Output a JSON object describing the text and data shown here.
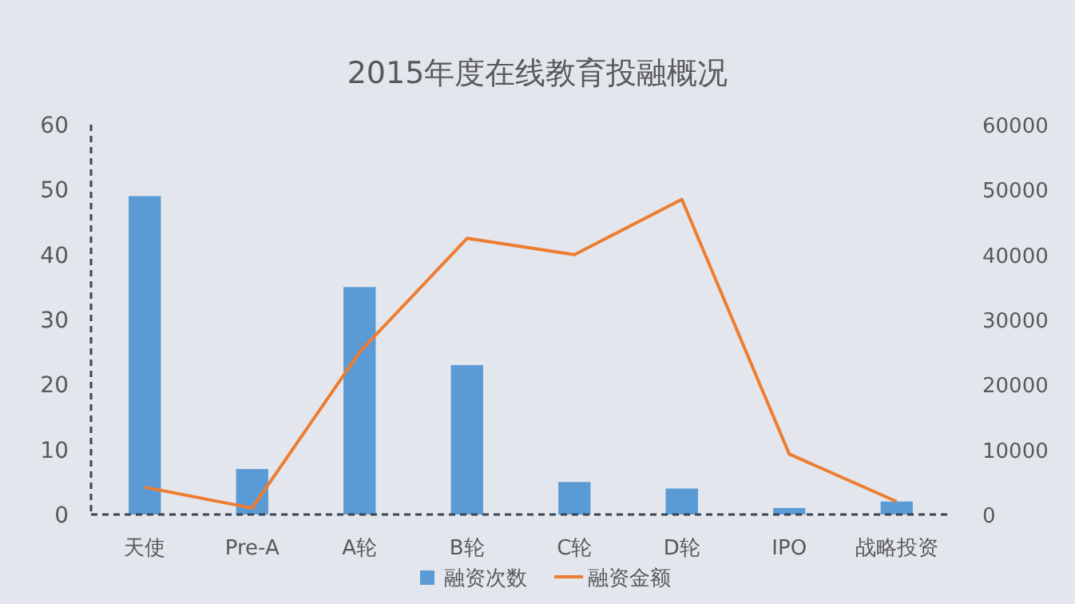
{
  "chart_data": {
    "type": "bar",
    "title": "2015年度在线教育投融概况",
    "categories": [
      "天使",
      "Pre-A",
      "A轮",
      "B轮",
      "C轮",
      "D轮",
      "IPO",
      "战略投资"
    ],
    "series": [
      {
        "name": "融资次数",
        "color": "#5b9bd5",
        "values": [
          49,
          7,
          35,
          23,
          5,
          4,
          1,
          2
        ]
      },
      {
        "name": "融资金额",
        "type": "line",
        "axis": "y2",
        "color": "#ed7d31",
        "values": [
          4200,
          1000,
          25000,
          42500,
          40000,
          48500,
          9300,
          2000
        ]
      }
    ],
    "ylim": [
      0,
      60
    ],
    "yticks": [
      0,
      10,
      20,
      30,
      40,
      50,
      60
    ],
    "y2lim": [
      0,
      60000
    ],
    "y2ticks": [
      0,
      10000,
      20000,
      30000,
      40000,
      50000,
      60000
    ],
    "grid": false,
    "legend": "bottom",
    "marker": "none",
    "line_style": "solid"
  }
}
